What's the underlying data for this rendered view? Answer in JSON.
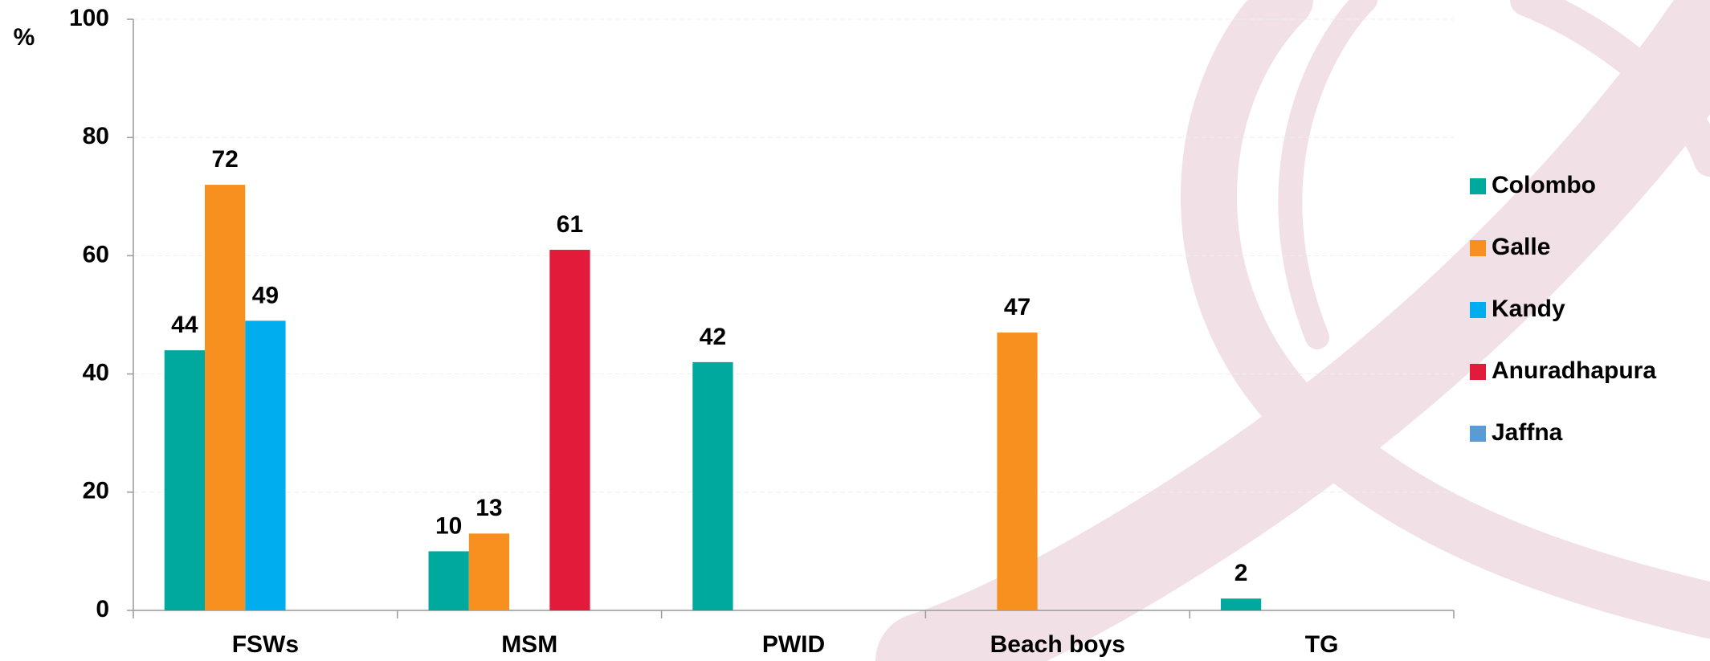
{
  "chart_data": {
    "type": "bar",
    "y_label": "%",
    "categories": [
      "FSWs",
      "MSM",
      "PWID",
      "Beach boys",
      "TG"
    ],
    "series": [
      {
        "name": "Colombo",
        "color": "#00a99d",
        "values": [
          44,
          10,
          42,
          null,
          2
        ]
      },
      {
        "name": "Galle",
        "color": "#f7901e",
        "values": [
          72,
          13,
          null,
          47,
          null
        ]
      },
      {
        "name": "Kandy",
        "color": "#00aeef",
        "values": [
          49,
          null,
          null,
          null,
          null
        ]
      },
      {
        "name": "Anuradhapura",
        "color": "#e31b3b",
        "values": [
          null,
          61,
          null,
          null,
          null
        ]
      },
      {
        "name": "Jaffna",
        "color": "#5b9bd5",
        "values": [
          null,
          null,
          null,
          null,
          null
        ]
      }
    ],
    "ylim": [
      0,
      100
    ],
    "yticks": [
      0,
      20,
      40,
      60,
      80,
      100
    ],
    "grid": true,
    "legend": "right"
  }
}
